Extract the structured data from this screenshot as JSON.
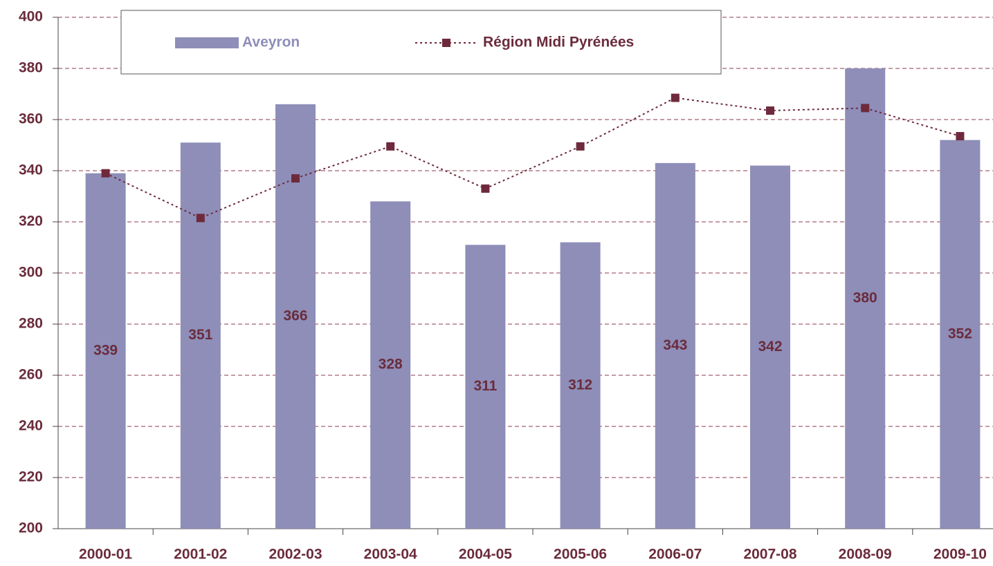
{
  "chart_data": {
    "type": "bar_line",
    "categories": [
      "2000-01",
      "2001-02",
      "2002-03",
      "2003-04",
      "2004-05",
      "2005-06",
      "2006-07",
      "2007-08",
      "2008-09",
      "2009-10"
    ],
    "series": [
      {
        "name": "Aveyron",
        "type": "bar",
        "color": "#8e8eb9",
        "values": [
          339,
          351,
          366,
          328,
          311,
          312,
          343,
          342,
          380,
          352
        ]
      },
      {
        "name": "Région Midi Pyrénées",
        "type": "line",
        "color": "#6e2a3c",
        "values": [
          339,
          321.5,
          337,
          349.5,
          333,
          349.5,
          368.5,
          363.5,
          364.5,
          353.5
        ]
      }
    ],
    "ylim": [
      200,
      400
    ],
    "yticks": [
      200,
      220,
      240,
      260,
      280,
      300,
      320,
      340,
      360,
      380,
      400
    ],
    "grid": true
  }
}
